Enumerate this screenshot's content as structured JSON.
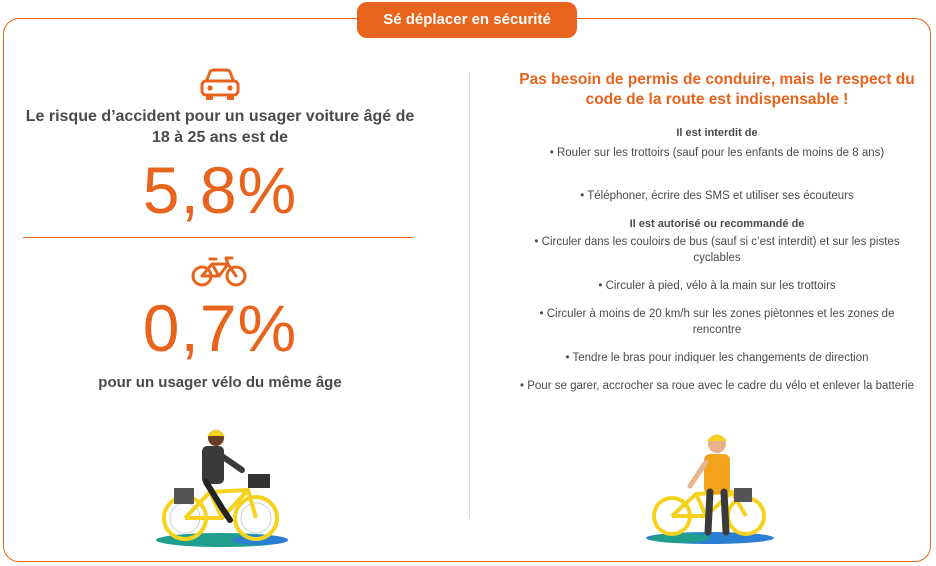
{
  "header": {
    "title": "Sé déplacer en sécurité"
  },
  "left": {
    "car_icon": "car-icon",
    "car_risk_text": "Le risque d’accident pour un usager voiture âgé de 18 à 25 ans est de",
    "car_risk_value": "5,8%",
    "bike_icon": "bicycle-icon",
    "bike_risk_value": "0,7%",
    "bike_risk_text": "pour un usager vélo du même âge"
  },
  "right": {
    "headline": "Pas besoin de permis de conduire, mais le respect du code de la route est indispensable !",
    "forbidden": {
      "title": "Il est interdit de",
      "items": [
        "• Rouler sur les trottoirs (sauf pour les enfants de moins de 8 ans)",
        "• Téléphoner, écrire des SMS et utiliser ses écouteurs"
      ]
    },
    "allowed": {
      "title": "Il est autorisé ou recommandé de",
      "items": [
        "• Circuler dans les couloirs de bus (sauf si c’est interdit) et sur les pistes cyclables",
        "• Circuler à pied, vélo à la main sur les trottoirs",
        "• Circuler à moins de 20 km/h sur les zones piètonnes et les zones de rencontre",
        "• Tendre le bras pour indiquer les changements de direction",
        "• Pour se garer, accrocher sa roue avec le cadre du vélo et enlever la batterie"
      ]
    }
  },
  "colors": {
    "accent": "#e8631c",
    "text": "#4a4a4a",
    "bike_yellow": "#f4d21f",
    "ground_green": "#1f9e8e",
    "ground_blue": "#2a7fd3"
  }
}
